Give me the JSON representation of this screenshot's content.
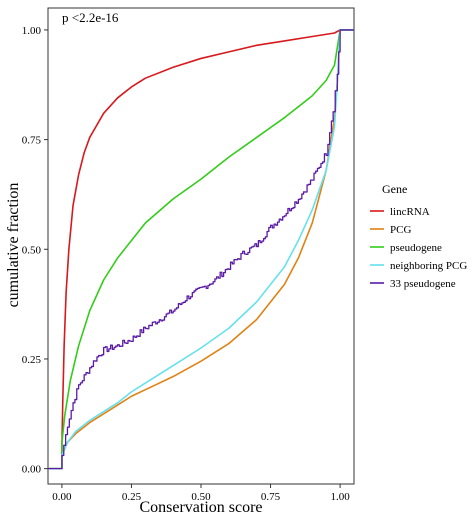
{
  "chart_data": {
    "type": "line",
    "title": "",
    "xlabel": "Conservation score",
    "ylabel": "cumulative fraction",
    "xlim": [
      -0.05,
      1.05
    ],
    "ylim": [
      -0.035,
      1.05
    ],
    "x_ticks": [
      "0.00",
      "0.25",
      "0.50",
      "0.75",
      "1.00"
    ],
    "y_ticks": [
      "0.00",
      "0.25",
      "0.50",
      "0.75",
      "1.00"
    ],
    "grid": false,
    "legend_position": "right",
    "legend_title": "Gene",
    "annotation": "p <2.2e-16",
    "series": [
      {
        "name": "lincRNA",
        "color": "#d7191c",
        "points": [
          [
            -0.05,
            0
          ],
          [
            0,
            0
          ],
          [
            0,
            0.05
          ],
          [
            0.003,
            0.15
          ],
          [
            0.008,
            0.28
          ],
          [
            0.015,
            0.4
          ],
          [
            0.025,
            0.5
          ],
          [
            0.04,
            0.6
          ],
          [
            0.06,
            0.67
          ],
          [
            0.08,
            0.72
          ],
          [
            0.1,
            0.755
          ],
          [
            0.15,
            0.81
          ],
          [
            0.2,
            0.845
          ],
          [
            0.25,
            0.87
          ],
          [
            0.3,
            0.89
          ],
          [
            0.4,
            0.915
          ],
          [
            0.5,
            0.935
          ],
          [
            0.6,
            0.95
          ],
          [
            0.7,
            0.965
          ],
          [
            0.8,
            0.975
          ],
          [
            0.9,
            0.985
          ],
          [
            0.98,
            0.993
          ],
          [
            1,
            1
          ],
          [
            1.05,
            1
          ]
        ]
      },
      {
        "name": "PCG",
        "color": "#e08214",
        "points": [
          [
            -0.05,
            0
          ],
          [
            0,
            0
          ],
          [
            0,
            0.03
          ],
          [
            0.02,
            0.06
          ],
          [
            0.05,
            0.08
          ],
          [
            0.1,
            0.105
          ],
          [
            0.15,
            0.125
          ],
          [
            0.2,
            0.145
          ],
          [
            0.25,
            0.165
          ],
          [
            0.3,
            0.18
          ],
          [
            0.4,
            0.21
          ],
          [
            0.5,
            0.245
          ],
          [
            0.6,
            0.285
          ],
          [
            0.7,
            0.34
          ],
          [
            0.8,
            0.42
          ],
          [
            0.85,
            0.48
          ],
          [
            0.9,
            0.56
          ],
          [
            0.95,
            0.68
          ],
          [
            0.98,
            0.8
          ],
          [
            0.99,
            0.88
          ],
          [
            1,
            1
          ],
          [
            1.05,
            1
          ]
        ]
      },
      {
        "name": "pseudogene",
        "color": "#33cc1a",
        "points": [
          [
            -0.05,
            0
          ],
          [
            0,
            0
          ],
          [
            0,
            0.06
          ],
          [
            0.01,
            0.12
          ],
          [
            0.03,
            0.2
          ],
          [
            0.06,
            0.28
          ],
          [
            0.1,
            0.36
          ],
          [
            0.15,
            0.43
          ],
          [
            0.2,
            0.48
          ],
          [
            0.25,
            0.52
          ],
          [
            0.3,
            0.56
          ],
          [
            0.4,
            0.615
          ],
          [
            0.5,
            0.66
          ],
          [
            0.6,
            0.71
          ],
          [
            0.7,
            0.755
          ],
          [
            0.8,
            0.8
          ],
          [
            0.85,
            0.825
          ],
          [
            0.9,
            0.85
          ],
          [
            0.95,
            0.885
          ],
          [
            0.98,
            0.92
          ],
          [
            1,
            1
          ],
          [
            1.05,
            1
          ]
        ]
      },
      {
        "name": "neighboring PCG",
        "color": "#66e0ee",
        "points": [
          [
            -0.05,
            0
          ],
          [
            0,
            0
          ],
          [
            0,
            0.03
          ],
          [
            0.02,
            0.06
          ],
          [
            0.05,
            0.085
          ],
          [
            0.1,
            0.11
          ],
          [
            0.15,
            0.13
          ],
          [
            0.2,
            0.15
          ],
          [
            0.25,
            0.175
          ],
          [
            0.3,
            0.195
          ],
          [
            0.4,
            0.235
          ],
          [
            0.5,
            0.275
          ],
          [
            0.6,
            0.32
          ],
          [
            0.7,
            0.38
          ],
          [
            0.8,
            0.46
          ],
          [
            0.85,
            0.52
          ],
          [
            0.9,
            0.59
          ],
          [
            0.95,
            0.68
          ],
          [
            0.98,
            0.78
          ],
          [
            0.99,
            0.88
          ],
          [
            1,
            1
          ],
          [
            1.05,
            1
          ]
        ]
      },
      {
        "name": "33 pseudogene",
        "color": "#5a1aa6",
        "jagged": true,
        "points": [
          [
            -0.05,
            0
          ],
          [
            0,
            0
          ],
          [
            0,
            0.03
          ],
          [
            0.02,
            0.1
          ],
          [
            0.04,
            0.15
          ],
          [
            0.06,
            0.19
          ],
          [
            0.08,
            0.21
          ],
          [
            0.1,
            0.23
          ],
          [
            0.12,
            0.25
          ],
          [
            0.15,
            0.27
          ],
          [
            0.2,
            0.28
          ],
          [
            0.25,
            0.295
          ],
          [
            0.3,
            0.32
          ],
          [
            0.35,
            0.34
          ],
          [
            0.4,
            0.36
          ],
          [
            0.45,
            0.39
          ],
          [
            0.5,
            0.41
          ],
          [
            0.55,
            0.43
          ],
          [
            0.6,
            0.46
          ],
          [
            0.65,
            0.49
          ],
          [
            0.7,
            0.51
          ],
          [
            0.75,
            0.55
          ],
          [
            0.8,
            0.58
          ],
          [
            0.85,
            0.615
          ],
          [
            0.9,
            0.66
          ],
          [
            0.95,
            0.72
          ],
          [
            0.975,
            0.82
          ],
          [
            0.99,
            0.9
          ],
          [
            1,
            1
          ],
          [
            1.05,
            1
          ]
        ]
      }
    ]
  }
}
